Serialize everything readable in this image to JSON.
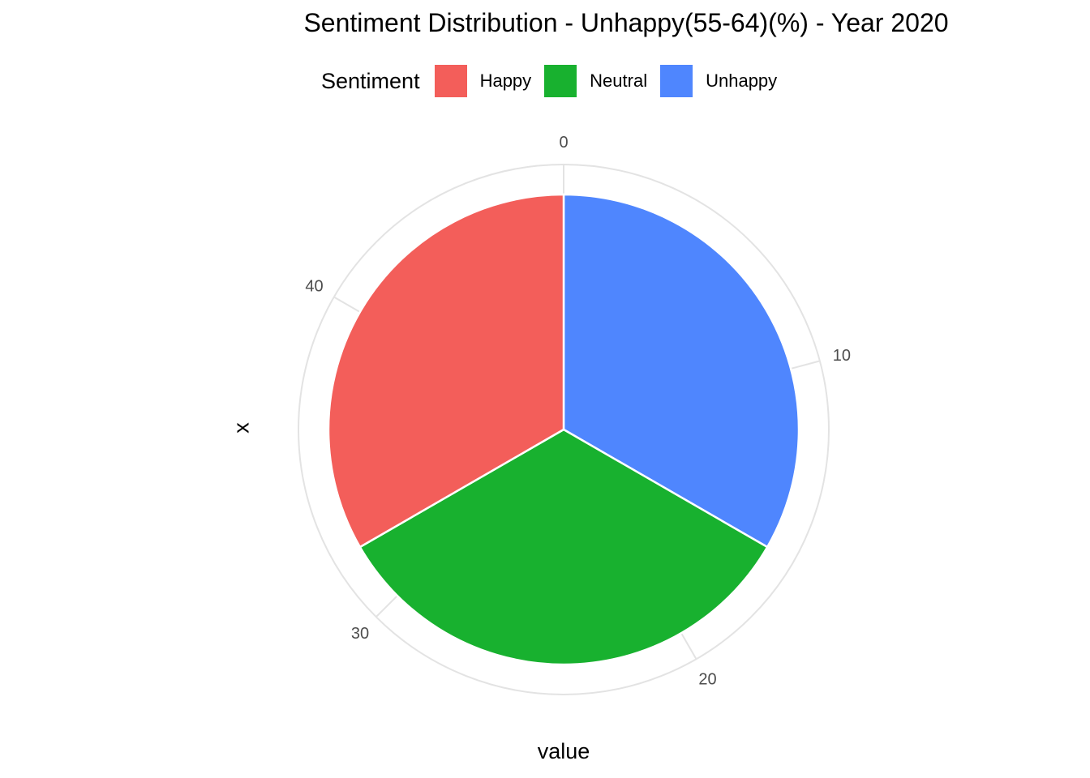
{
  "chart_data": {
    "type": "pie",
    "title": "Sentiment Distribution - Unhappy(55-64)(%) - Year 2020",
    "xlabel": "value",
    "ylabel": "x",
    "legend_title": "Sentiment",
    "legend_position": "top",
    "grid": true,
    "radial_axis": {
      "ticks": [
        0,
        10,
        20,
        30,
        40
      ],
      "max": 48
    },
    "slices": [
      {
        "label": "Unhappy",
        "value": 16,
        "color": "#4f86fe"
      },
      {
        "label": "Neutral",
        "value": 16,
        "color": "#18b12f"
      },
      {
        "label": "Happy",
        "value": 16,
        "color": "#f35e5a"
      }
    ],
    "legend": [
      {
        "label": "Happy",
        "color": "#f35e5a"
      },
      {
        "label": "Neutral",
        "color": "#18b12f"
      },
      {
        "label": "Unhappy",
        "color": "#4f86fe"
      }
    ]
  }
}
